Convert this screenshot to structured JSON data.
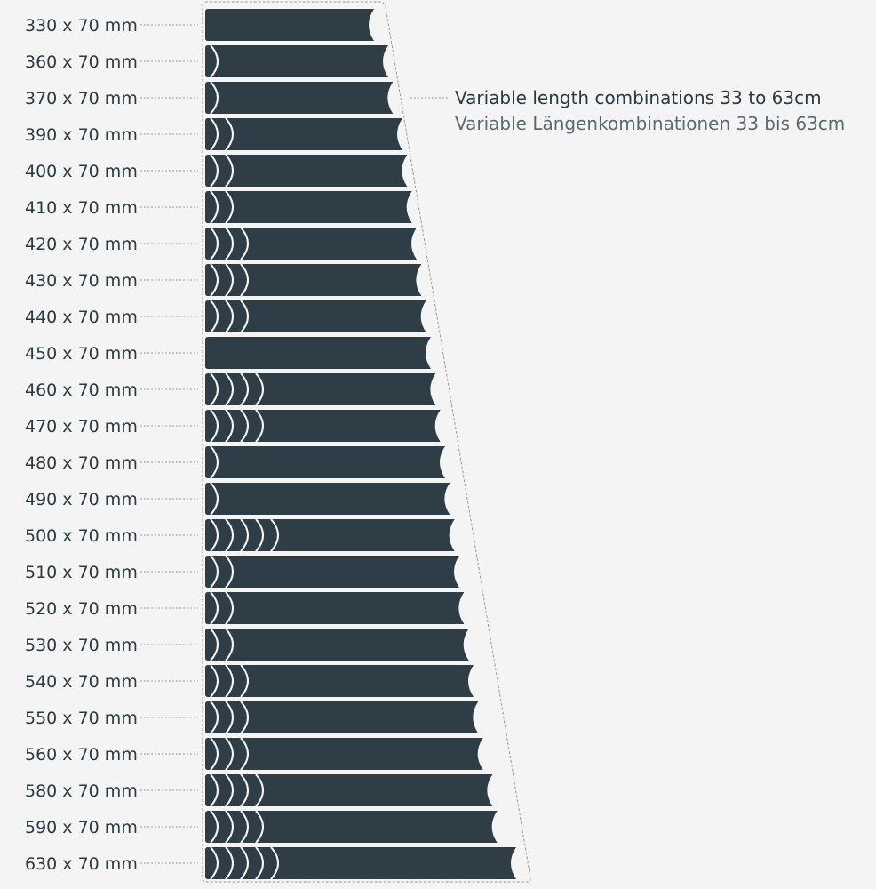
{
  "caption": {
    "line_en": "Variable length combinations 33 to 63cm",
    "line_de": "Variable Längenkombinationen 33 bis 63cm"
  },
  "rows": [
    {
      "label": "330 x 70 mm",
      "length_mm": 330,
      "segments": 0
    },
    {
      "label": "360 x 70 mm",
      "length_mm": 360,
      "segments": 1
    },
    {
      "label": "370 x 70 mm",
      "length_mm": 370,
      "segments": 1
    },
    {
      "label": "390 x 70 mm",
      "length_mm": 390,
      "segments": 2
    },
    {
      "label": "400 x 70 mm",
      "length_mm": 400,
      "segments": 2
    },
    {
      "label": "410 x 70 mm",
      "length_mm": 410,
      "segments": 2
    },
    {
      "label": "420 x 70 mm",
      "length_mm": 420,
      "segments": 3
    },
    {
      "label": "430 x 70 mm",
      "length_mm": 430,
      "segments": 3
    },
    {
      "label": "440 x 70 mm",
      "length_mm": 440,
      "segments": 3
    },
    {
      "label": "450 x 70 mm",
      "length_mm": 450,
      "segments": 0
    },
    {
      "label": "460 x 70 mm",
      "length_mm": 460,
      "segments": 4
    },
    {
      "label": "470 x 70 mm",
      "length_mm": 470,
      "segments": 4
    },
    {
      "label": "480 x 70 mm",
      "length_mm": 480,
      "segments": 1
    },
    {
      "label": "490 x 70 mm",
      "length_mm": 490,
      "segments": 1
    },
    {
      "label": "500 x 70 mm",
      "length_mm": 500,
      "segments": 5
    },
    {
      "label": "510 x 70 mm",
      "length_mm": 510,
      "segments": 2
    },
    {
      "label": "520 x 70 mm",
      "length_mm": 520,
      "segments": 2
    },
    {
      "label": "530 x 70 mm",
      "length_mm": 530,
      "segments": 2
    },
    {
      "label": "540 x 70 mm",
      "length_mm": 540,
      "segments": 3
    },
    {
      "label": "550 x 70 mm",
      "length_mm": 550,
      "segments": 3
    },
    {
      "label": "560 x 70 mm",
      "length_mm": 560,
      "segments": 3
    },
    {
      "label": "580 x 70 mm",
      "length_mm": 580,
      "segments": 4
    },
    {
      "label": "590 x 70 mm",
      "length_mm": 590,
      "segments": 4
    },
    {
      "label": "630 x 70 mm",
      "length_mm": 630,
      "segments": 5
    }
  ],
  "colors": {
    "strip": "#2f3e46",
    "background": "#f4f4f4",
    "text": "#2b3a42"
  }
}
